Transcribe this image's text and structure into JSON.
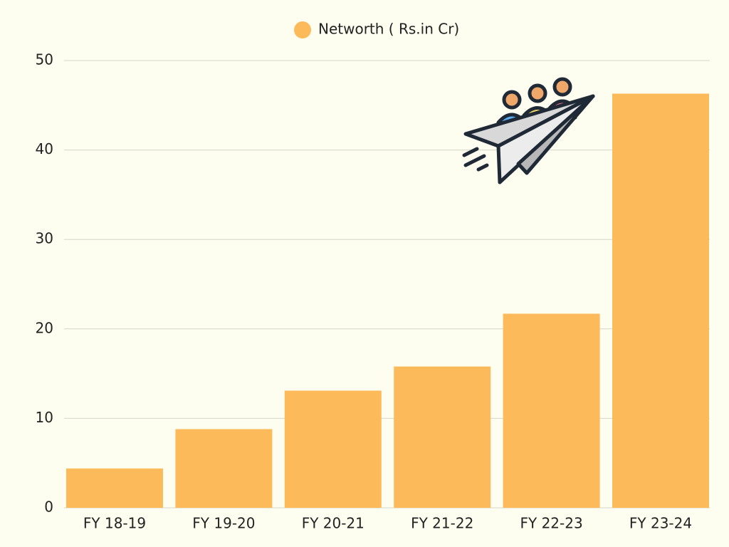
{
  "chart_data": {
    "type": "bar",
    "categories": [
      "FY 18-19",
      "FY 19-20",
      "FY 20-21",
      "FY 21-22",
      "FY 22-23",
      "FY 23-24"
    ],
    "series": [
      {
        "name": "Networth ( Rs.in Cr)",
        "color": "#fdba5a",
        "values": [
          4.4,
          8.8,
          13.1,
          15.8,
          21.7,
          46.3
        ]
      }
    ],
    "ylim": [
      0,
      50
    ],
    "yticks": [
      0,
      10,
      20,
      30,
      40,
      50
    ],
    "grid": true,
    "legend": "top"
  }
}
